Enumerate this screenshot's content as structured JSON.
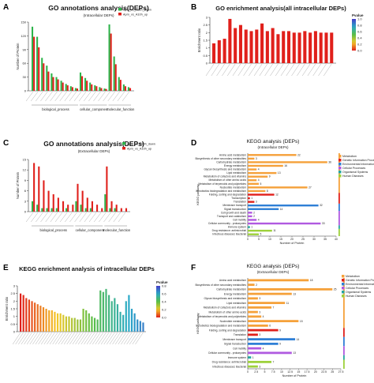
{
  "colors": {
    "green": "#2db34a",
    "red": "#e0201b",
    "orange": "#f5a13a",
    "blue": "#2f7fd6",
    "purple": "#b05ae0",
    "lime": "#9ed13c",
    "teal": "#26a6a0",
    "axis": "#333333"
  },
  "panels": {
    "A": {
      "label": "A",
      "title": "GO annotations analysis(DEPs)",
      "subtitle": "(Intracellular DEPs)"
    },
    "B": {
      "label": "B",
      "title": "GO enrichment analysis(all intracellular DEPs)"
    },
    "C": {
      "label": "C",
      "title": "GO annotations analysis(DEPs)",
      "subtitle": "(Extracellular DEPs)"
    },
    "D": {
      "label": "D",
      "title": "KEGG analysis (DEPs)",
      "subtitle": "(Intracellular DEPs)"
    },
    "E": {
      "label": "E",
      "title": "KEGG enrichment analysis of intracellular DEPs"
    },
    "F": {
      "label": "F",
      "title": "KEGG analysis (DEPs)",
      "subtitle": "(Extracellular DEPs)"
    }
  },
  "chart_data": [
    {
      "id": "A",
      "type": "bar",
      "ylabel": "Number of Protein",
      "ylim": [
        0,
        150
      ],
      "yticks": [
        0,
        30,
        60,
        90,
        120,
        150
      ],
      "groups": [
        "biological_process",
        "cellular_component",
        "molecular_function"
      ],
      "group_spans": [
        [
          0,
          9
        ],
        [
          10,
          15
        ],
        [
          16,
          20
        ]
      ],
      "legend": [
        "Apm_vs_A10h_down",
        "Apm_vs_A10h_up"
      ],
      "series": [
        {
          "name": "Apm_vs_A10h_down",
          "values": [
            140,
            118,
            72,
            55,
            38,
            30,
            22,
            15,
            10,
            6,
            40,
            28,
            18,
            12,
            8,
            5,
            145,
            75,
            30,
            14,
            8
          ]
        },
        {
          "name": "Apm_vs_A10h_up",
          "values": [
            118,
            95,
            60,
            42,
            30,
            25,
            18,
            12,
            8,
            5,
            32,
            22,
            14,
            10,
            6,
            4,
            125,
            58,
            24,
            10,
            6
          ]
        }
      ]
    },
    {
      "id": "B",
      "type": "bar",
      "ylabel": "Enrichment ratio",
      "ylim": [
        0,
        3.0
      ],
      "yticks": [
        0,
        0.5,
        1.0,
        1.5,
        2.0,
        2.5,
        3.0
      ],
      "colorbar": {
        "label": "Pvalue",
        "ticks": [
          "1.0",
          "0.8",
          "0.6",
          "0.4",
          "0.2",
          "0.0"
        ]
      },
      "values": [
        1.3,
        1.5,
        1.6,
        2.9,
        2.3,
        2.5,
        2.2,
        2.1,
        2.2,
        2.6,
        2.1,
        2.3,
        1.9,
        2.1,
        2.1,
        2.0,
        2.0,
        2.1,
        2.0,
        2.1,
        2.0,
        2.0,
        2.0
      ]
    },
    {
      "id": "C",
      "type": "bar",
      "ylabel": "Number of Protein",
      "ylim": [
        0,
        15
      ],
      "yticks": [
        0,
        3,
        6,
        9,
        12,
        15
      ],
      "groups": [
        "biological_process",
        "cellular_component",
        "molecular_function"
      ],
      "group_spans": [
        [
          0,
          8
        ],
        [
          9,
          14
        ],
        [
          15,
          19
        ]
      ],
      "legend": [
        "Apm_vs_A10h_down",
        "Apm_vs_A10h_up"
      ],
      "series": [
        {
          "name": "Apm_vs_A10h_down",
          "values": [
            3,
            2,
            1,
            1,
            1,
            1,
            0,
            1,
            0,
            3,
            2,
            1,
            1,
            0,
            0,
            5,
            1,
            1,
            0,
            0
          ]
        },
        {
          "name": "Apm_vs_A10h_up",
          "values": [
            14,
            13,
            9,
            6,
            5,
            4,
            3,
            2,
            2,
            8,
            6,
            4,
            3,
            2,
            1,
            13,
            3,
            2,
            1,
            1
          ]
        }
      ]
    },
    {
      "id": "D",
      "type": "bar",
      "orientation": "horizontal",
      "xlabel": "Number of Protein",
      "ylabel": "KEGG pathway",
      "xlim": [
        0,
        40
      ],
      "xticks": [
        0,
        5,
        10,
        15,
        20,
        25,
        30,
        35,
        40
      ],
      "categories": [
        "Amino acid metabolism",
        "Biosynthesis of other secondary metabolites",
        "Carbohydrate metabolism",
        "Energy metabolism",
        "Glycan biosynthesis and metabolism",
        "Lipid metabolism",
        "Metabolism of cofactors and vitamins",
        "Metabolism of other amino acids",
        "Metabolism of terpenoids and polyketides",
        "Nucleotide metabolism",
        "Xenobiotics biodegradation and metabolism",
        "Folding, sorting and degradation",
        "Transcription",
        "Translation",
        "Membrane transport",
        "Signal transduction",
        "Cell growth and death",
        "Transport and catabolism",
        "Cell motility",
        "Cellular community - prokaryotes",
        "Immune system",
        "Drug resistance: antimicrobial",
        "Infectious diseases: Bacterial"
      ],
      "values": [
        22,
        3,
        36,
        16,
        4,
        13,
        9,
        4,
        5,
        27,
        8,
        12,
        1,
        3,
        32,
        14,
        2,
        2,
        4,
        33,
        1,
        11,
        5
      ],
      "classes": [
        0,
        0,
        0,
        0,
        0,
        0,
        0,
        0,
        0,
        0,
        0,
        1,
        1,
        1,
        2,
        2,
        3,
        3,
        3,
        3,
        4,
        5,
        5
      ],
      "legend": [
        "Metabolism",
        "Genetic Information Processing",
        "Environmental Information Processing",
        "Cellular Processes",
        "Organismal Systems",
        "Human Diseases"
      ]
    },
    {
      "id": "E",
      "type": "bar",
      "ylabel": "Enrichment ratio",
      "ylim": [
        0,
        3.0
      ],
      "yticks": [
        0,
        0.5,
        1.0,
        1.5,
        2.0,
        2.5,
        3.0
      ],
      "colorbar": {
        "label": "Pvalue",
        "ticks": [
          "0.8",
          "0.6",
          "0.4",
          "0.2",
          "0.0"
        ]
      },
      "values": [
        2.5,
        2.4,
        2.2,
        2.1,
        2.0,
        1.9,
        1.8,
        1.7,
        1.6,
        1.5,
        1.4,
        1.4,
        1.3,
        1.2,
        1.2,
        1.1,
        1.0,
        1.0,
        0.9,
        0.9,
        0.8,
        0.8,
        1.5,
        1.4,
        1.2,
        1.0,
        0.9,
        0.8,
        2.7,
        2.6,
        2.8,
        2.4,
        2.0,
        2.2,
        1.8,
        1.3,
        1.1,
        2.0,
        2.4,
        1.5,
        1.2,
        0.8,
        0.7,
        0.6
      ]
    },
    {
      "id": "F",
      "type": "bar",
      "orientation": "horizontal",
      "xlabel": "Number of Protein",
      "ylabel": "KEGG pathway",
      "xlim": [
        0,
        27.5
      ],
      "xticks": [
        "0",
        "2.5",
        "5",
        "7.5",
        "10",
        "12.5",
        "15",
        "17.5",
        "20",
        "22.5",
        "25",
        "27.5"
      ],
      "categories": [
        "Amino acid metabolism",
        "Biosynthesis of other secondary metabolites",
        "Carbohydrate metabolism",
        "Energy metabolism",
        "Glycan biosynthesis and metabolism",
        "Lipid metabolism",
        "Metabolism of cofactors and vitamins",
        "Metabolism of other amino acids",
        "Metabolism of terpenoids and polyketides",
        "Nucleotide metabolism",
        "Xenobiotics biodegradation and metabolism",
        "Folding, sorting and degradation",
        "Translation",
        "Membrane transport",
        "Signal transduction",
        "Cell motility",
        "Cellular community - prokaryotes",
        "Immune system",
        "Drug resistance: antimicrobial",
        "Infectious diseases: Bacterial"
      ],
      "values": [
        18,
        2,
        25,
        13,
        3,
        11,
        7,
        3,
        4,
        15,
        6,
        9,
        3,
        14,
        9,
        4,
        13,
        1,
        7,
        3
      ],
      "classes": [
        0,
        0,
        0,
        0,
        0,
        0,
        0,
        0,
        0,
        0,
        0,
        1,
        1,
        2,
        2,
        3,
        3,
        4,
        5,
        5
      ],
      "legend": [
        "Metabolism",
        "Genetic Information Processing",
        "Environmental Information Processing",
        "Cellular Processes",
        "Organismal Systems",
        "Human Diseases"
      ]
    }
  ]
}
